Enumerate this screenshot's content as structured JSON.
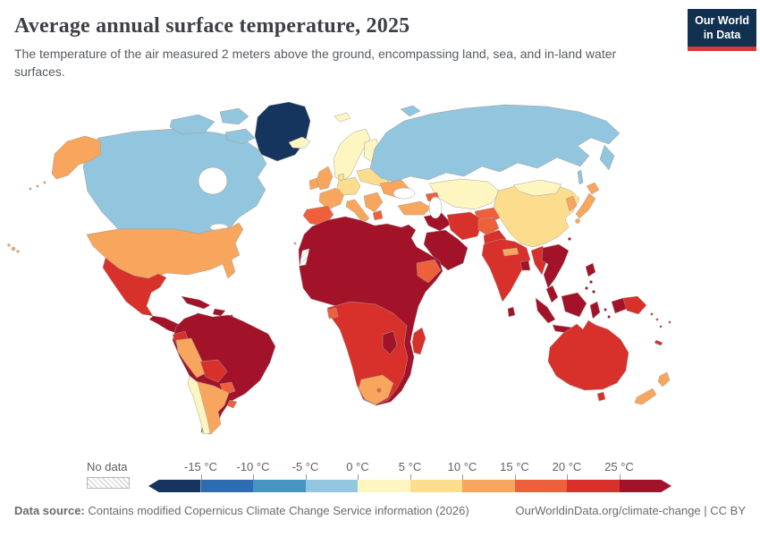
{
  "header": {
    "title": "Average annual surface temperature, 2025",
    "subtitle": "The temperature of the air measured 2 meters above the ground, encompassing land, sea, and in-land water surfaces.",
    "logo": {
      "line1": "Our World",
      "line2": "in Data",
      "bg_color": "#12304f",
      "accent_color": "#d93a34"
    }
  },
  "legend": {
    "no_data_label": "No data",
    "tick_labels": [
      "-15 °C",
      "-10 °C",
      "-5 °C",
      "0 °C",
      "5 °C",
      "10 °C",
      "15 °C",
      "20 °C",
      "25 °C"
    ],
    "bin_colors": [
      "#15355e",
      "#2d6cb0",
      "#4595c3",
      "#92c5de",
      "#fdf6c1",
      "#fcdd8e",
      "#f8a55d",
      "#ee5f3c",
      "#d8302a",
      "#a21329"
    ]
  },
  "palette": {
    "navy": "#15355e",
    "lightblue": "#92c5de",
    "paleyellow": "#fdf6c1",
    "lightorange": "#fcdd8e",
    "orange": "#f8a55d",
    "orangered": "#ee5f3c",
    "red": "#d8302a",
    "darkred": "#a21329",
    "white": "#ffffff"
  },
  "footer": {
    "source_label": "Data source:",
    "source_text": " Contains modified Copernicus Climate Change Service information (2026)",
    "link_text": "OurWorldinData.org/climate-change | CC BY"
  },
  "chart_data": {
    "type": "choropleth",
    "title": "Average annual surface temperature, 2025",
    "unit": "°C",
    "year": 2025,
    "legend_bins": [
      {
        "range": "< -15",
        "color": "#15355e"
      },
      {
        "range": "-15 to -10",
        "color": "#2d6cb0"
      },
      {
        "range": "-10 to -5",
        "color": "#4595c3"
      },
      {
        "range": "-5 to 0",
        "color": "#92c5de"
      },
      {
        "range": "0 to 5",
        "color": "#fdf6c1"
      },
      {
        "range": "5 to 10",
        "color": "#fcdd8e"
      },
      {
        "range": "10 to 15",
        "color": "#f8a55d"
      },
      {
        "range": "15 to 20",
        "color": "#ee5f3c"
      },
      {
        "range": "20 to 25",
        "color": "#d8302a"
      },
      {
        "range": "> 25",
        "color": "#a21329"
      }
    ],
    "regions": [
      {
        "name": "Greenland",
        "bin": "< -15"
      },
      {
        "name": "Canada",
        "bin": "-5 to 0"
      },
      {
        "name": "Russia",
        "bin": "-5 to 0"
      },
      {
        "name": "Iceland",
        "bin": "0 to 5"
      },
      {
        "name": "Norway",
        "bin": "0 to 5"
      },
      {
        "name": "Sweden",
        "bin": "0 to 5"
      },
      {
        "name": "Finland",
        "bin": "0 to 5"
      },
      {
        "name": "Mongolia",
        "bin": "0 to 5"
      },
      {
        "name": "Kazakhstan",
        "bin": "0 to 5"
      },
      {
        "name": "Chile",
        "bin": "0 to 5"
      },
      {
        "name": "Germany",
        "bin": "5 to 10"
      },
      {
        "name": "Poland",
        "bin": "5 to 10"
      },
      {
        "name": "Belarus",
        "bin": "5 to 10"
      },
      {
        "name": "China",
        "bin": "5 to 10"
      },
      {
        "name": "United States",
        "bin": "10 to 15"
      },
      {
        "name": "United Kingdom",
        "bin": "10 to 15"
      },
      {
        "name": "Ireland",
        "bin": "10 to 15"
      },
      {
        "name": "France",
        "bin": "10 to 15"
      },
      {
        "name": "Italy",
        "bin": "10 to 15"
      },
      {
        "name": "Ukraine",
        "bin": "10 to 15"
      },
      {
        "name": "Turkey",
        "bin": "10 to 15"
      },
      {
        "name": "Japan",
        "bin": "10 to 15"
      },
      {
        "name": "South Korea",
        "bin": "10 to 15"
      },
      {
        "name": "Nepal",
        "bin": "10 to 15"
      },
      {
        "name": "New Zealand",
        "bin": "10 to 15"
      },
      {
        "name": "Argentina",
        "bin": "10 to 15"
      },
      {
        "name": "Peru",
        "bin": "10 to 15"
      },
      {
        "name": "South Africa",
        "bin": "10 to 15"
      },
      {
        "name": "Spain",
        "bin": "15 to 20"
      },
      {
        "name": "Portugal",
        "bin": "15 to 20"
      },
      {
        "name": "Greece",
        "bin": "15 to 20"
      },
      {
        "name": "Afghanistan",
        "bin": "15 to 20"
      },
      {
        "name": "Turkmenistan",
        "bin": "15 to 20"
      },
      {
        "name": "Uzbekistan",
        "bin": "15 to 20"
      },
      {
        "name": "Ethiopia",
        "bin": "15 to 20"
      },
      {
        "name": "Paraguay",
        "bin": "15 to 20"
      },
      {
        "name": "Uruguay",
        "bin": "15 to 20"
      },
      {
        "name": "Iran",
        "bin": "20 to 25"
      },
      {
        "name": "Pakistan",
        "bin": "20 to 25"
      },
      {
        "name": "India",
        "bin": "20 to 25"
      },
      {
        "name": "Myanmar",
        "bin": "20 to 25"
      },
      {
        "name": "Mexico",
        "bin": "20 to 25"
      },
      {
        "name": "Bolivia",
        "bin": "20 to 25"
      },
      {
        "name": "Ecuador",
        "bin": "20 to 25"
      },
      {
        "name": "DR Congo",
        "bin": "20 to 25"
      },
      {
        "name": "Angola",
        "bin": "20 to 25"
      },
      {
        "name": "Tanzania",
        "bin": "20 to 25"
      },
      {
        "name": "Mozambique",
        "bin": "20 to 25"
      },
      {
        "name": "Madagascar",
        "bin": "20 to 25"
      },
      {
        "name": "Australia",
        "bin": "20 to 25"
      },
      {
        "name": "Papua New Guinea",
        "bin": "20 to 25"
      },
      {
        "name": "Brazil",
        "bin": "> 25"
      },
      {
        "name": "Colombia",
        "bin": "> 25"
      },
      {
        "name": "Venezuela",
        "bin": "> 25"
      },
      {
        "name": "Central America",
        "bin": "> 25"
      },
      {
        "name": "Cuba",
        "bin": "> 25"
      },
      {
        "name": "Caribbean islands",
        "bin": "> 25"
      },
      {
        "name": "Algeria",
        "bin": "> 25"
      },
      {
        "name": "Libya",
        "bin": "> 25"
      },
      {
        "name": "Egypt",
        "bin": "> 25"
      },
      {
        "name": "Mali",
        "bin": "> 25"
      },
      {
        "name": "Niger",
        "bin": "> 25"
      },
      {
        "name": "Chad",
        "bin": "> 25"
      },
      {
        "name": "Sudan",
        "bin": "> 25"
      },
      {
        "name": "Nigeria",
        "bin": "> 25"
      },
      {
        "name": "Somalia",
        "bin": "> 25"
      },
      {
        "name": "Kenya",
        "bin": "> 25"
      },
      {
        "name": "Saudi Arabia",
        "bin": "> 25"
      },
      {
        "name": "Iraq",
        "bin": "> 25"
      },
      {
        "name": "Yemen",
        "bin": "> 25"
      },
      {
        "name": "Bangladesh",
        "bin": "> 25"
      },
      {
        "name": "Sri Lanka",
        "bin": "> 25"
      },
      {
        "name": "Thailand",
        "bin": "> 25"
      },
      {
        "name": "Vietnam",
        "bin": "> 25"
      },
      {
        "name": "Cambodia",
        "bin": "> 25"
      },
      {
        "name": "Malaysia",
        "bin": "> 25"
      },
      {
        "name": "Indonesia",
        "bin": "> 25"
      },
      {
        "name": "Philippines",
        "bin": "> 25"
      },
      {
        "name": "Western Sahara",
        "bin": "No data"
      }
    ]
  }
}
